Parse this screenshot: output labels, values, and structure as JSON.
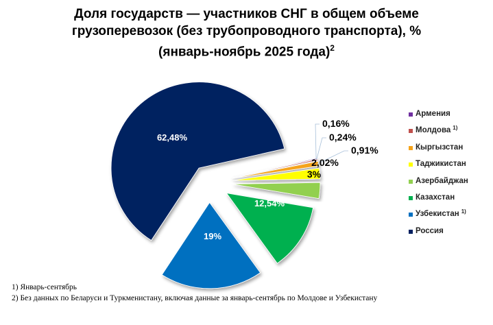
{
  "title": {
    "line1": "Доля государств — участников СНГ в общем объеме",
    "line2": "грузоперевозок (без трубопроводного транспорта), %",
    "line3": "(январь-ноябрь 2025 года)",
    "line3_sup": "2"
  },
  "chart_data": {
    "type": "pie",
    "title": "Доля государств — участников СНГ в общем объеме грузоперевозок (без трубопроводного транспорта), % (январь-ноябрь 2025 года)",
    "legend_position": "right",
    "slices": [
      {
        "name": "Армения",
        "value": 0.16,
        "label": "0,16%",
        "color": "#7030a0"
      },
      {
        "name": "Молдова",
        "name_sup": "1)",
        "value": 0.24,
        "label": "0,24%",
        "color": "#c0504d"
      },
      {
        "name": "Кыргызстан",
        "value": 0.91,
        "label": "0,91%",
        "color": "#f5a31a"
      },
      {
        "name": "Таджикистан",
        "value": 2.02,
        "label": "2,02%",
        "color": "#ffff00"
      },
      {
        "name": "Азербайджан",
        "value": 3,
        "label": "3%",
        "color": "#92d050"
      },
      {
        "name": "Казахстан",
        "value": 12.54,
        "label": "12,54%",
        "color": "#00b050"
      },
      {
        "name": "Узбекистан",
        "name_sup": "1)",
        "value": 19,
        "label": "19%",
        "color": "#0070c0"
      },
      {
        "name": "Россия",
        "value": 62.48,
        "label": "62,48%",
        "color": "#002060"
      }
    ]
  },
  "footnotes": [
    "1) Январь-сентябрь",
    "2) Без данных по Беларуси и Туркменистану, включая данные за январь-сентябрь по Молдове и Узбекистану"
  ]
}
